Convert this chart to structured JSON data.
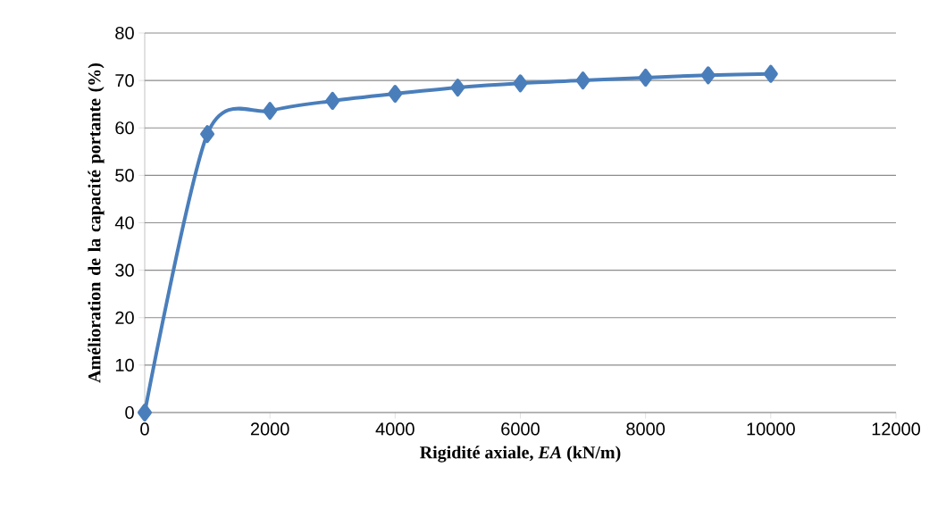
{
  "chart_data": {
    "type": "line",
    "xlabel": "Rigidité axiale, *EA* (kN/m)",
    "ylabel": "Amélioration de la capacité portante (%)",
    "x": [
      0,
      1000,
      2000,
      3000,
      4000,
      5000,
      6000,
      7000,
      8000,
      9000,
      10000
    ],
    "series": [
      {
        "color": "#4a7ebb",
        "values": [
          0,
          58.7,
          63.6,
          65.7,
          67.2,
          68.5,
          69.4,
          70.0,
          70.6,
          71.1,
          71.4
        ]
      }
    ],
    "xlim": [
      0,
      12000
    ],
    "ylim": [
      0,
      80
    ],
    "xticks": [
      0,
      2000,
      4000,
      6000,
      8000,
      10000,
      12000
    ],
    "yticks": [
      0,
      10,
      20,
      30,
      40,
      50,
      60,
      70,
      80
    ],
    "grid": "y",
    "marker": "diamond",
    "line_style": "solid"
  }
}
